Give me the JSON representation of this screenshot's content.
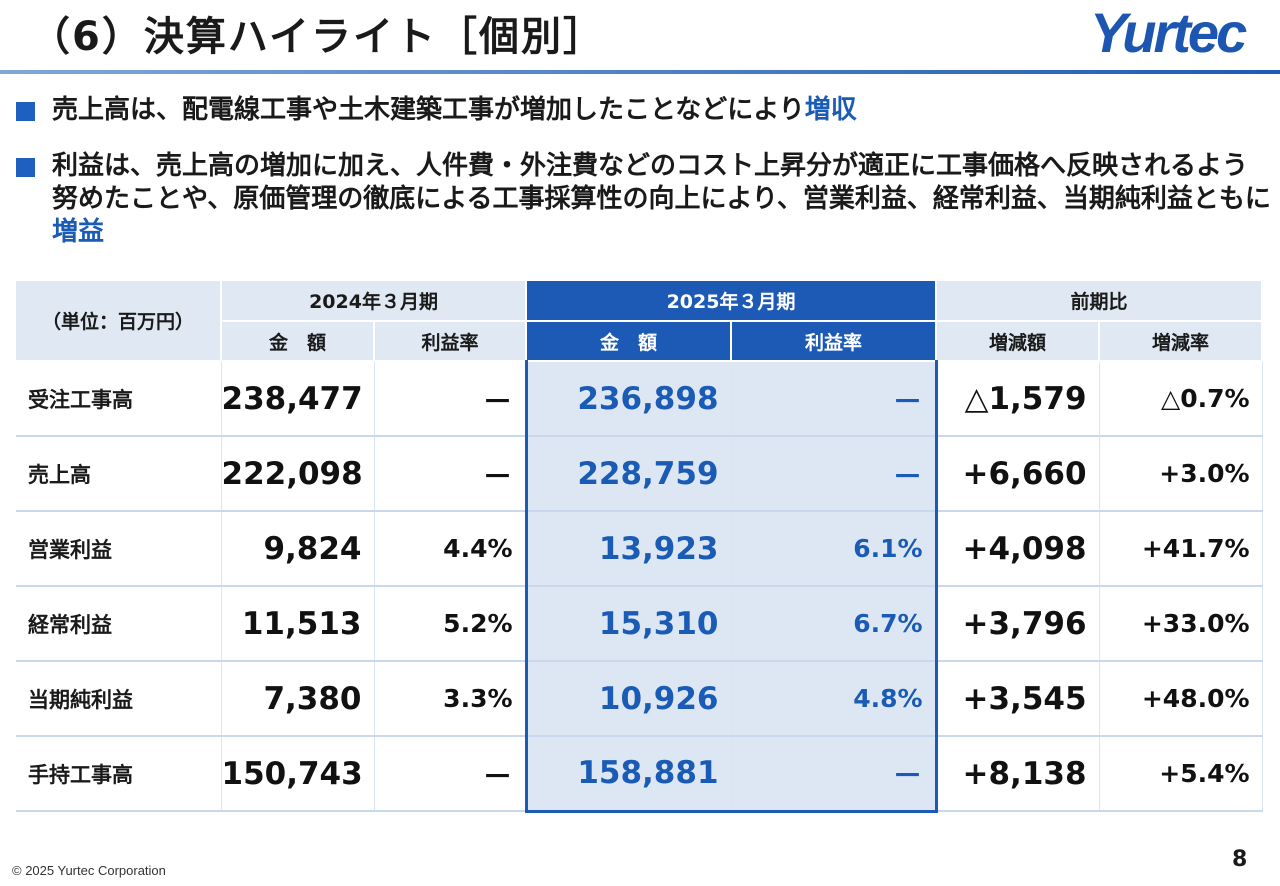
{
  "header": {
    "title": "（6）決算ハイライト［個別］",
    "logo_text": "Yurtec"
  },
  "bullets": [
    {
      "text": "売上高は、配電線工事や土木建築工事が増加したことなどにより",
      "highlight": "増収"
    },
    {
      "text": "利益は、売上高の増加に加え、人件費・外注費などのコスト上昇分が適正に工事価格へ反映されるよう努めたことや、原価管理の徹底による工事採算性の向上により、営業利益、経常利益、当期純利益ともに",
      "highlight": "増益"
    }
  ],
  "table": {
    "unit": "（単位：百万円）",
    "groups": {
      "prev": "2024年３月期",
      "cur": "2025年３月期",
      "cmp": "前期比"
    },
    "subheaders": {
      "amount": "金　額",
      "margin": "利益率",
      "diff": "増減額",
      "diff_rate": "増減率"
    },
    "rows": [
      {
        "label": "受注工事高",
        "prev_amount": "238,477",
        "prev_margin": "－",
        "cur_amount": "236,898",
        "cur_margin": "－",
        "diff": "△1,579",
        "diff_rate": "△0.7%"
      },
      {
        "label": "売上高",
        "prev_amount": "222,098",
        "prev_margin": "－",
        "cur_amount": "228,759",
        "cur_margin": "－",
        "diff": "+6,660",
        "diff_rate": "+3.0%"
      },
      {
        "label": "営業利益",
        "prev_amount": "9,824",
        "prev_margin": "4.4%",
        "cur_amount": "13,923",
        "cur_margin": "6.1%",
        "diff": "+4,098",
        "diff_rate": "+41.7%"
      },
      {
        "label": "経常利益",
        "prev_amount": "11,513",
        "prev_margin": "5.2%",
        "cur_amount": "15,310",
        "cur_margin": "6.7%",
        "diff": "+3,796",
        "diff_rate": "+33.0%"
      },
      {
        "label": "当期純利益",
        "prev_amount": "7,380",
        "prev_margin": "3.3%",
        "cur_amount": "10,926",
        "cur_margin": "4.8%",
        "diff": "+3,545",
        "diff_rate": "+48.0%"
      },
      {
        "label": "手持工事高",
        "prev_amount": "150,743",
        "prev_margin": "－",
        "cur_amount": "158,881",
        "cur_margin": "－",
        "diff": "+8,138",
        "diff_rate": "+5.4%"
      }
    ]
  },
  "footer": {
    "copyright": "© 2025 Yurtec Corporation",
    "page_number": "8"
  },
  "colors": {
    "accent": "#1c5ab5",
    "header_bg": "#dfe8f3",
    "highlight_bg": "#dde7f3"
  }
}
